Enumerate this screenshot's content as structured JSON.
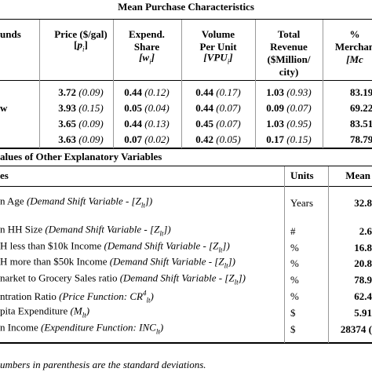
{
  "title": "Mean Purchase Characteristics",
  "top": {
    "headers": [
      [
        [
          {
            "text": "unds",
            "style": "bold"
          }
        ]
      ],
      [
        [
          {
            "text": "Price ($/gal)",
            "style": "bold"
          }
        ],
        [
          {
            "text": "[",
            "style": "bold"
          },
          {
            "text": "p",
            "style": "bolditalic"
          },
          {
            "text": "i",
            "style": "sub"
          },
          {
            "text": "]",
            "style": "bold"
          }
        ]
      ],
      [
        [
          {
            "text": "Expend.",
            "style": "bold"
          }
        ],
        [
          {
            "text": "Share",
            "style": "bold"
          }
        ],
        [
          {
            "text": "[w",
            "style": "bolditalic"
          },
          {
            "text": "i",
            "style": "sub"
          },
          {
            "text": "]",
            "style": "bolditalic"
          }
        ]
      ],
      [
        [
          {
            "text": "Volume",
            "style": "bold"
          }
        ],
        [
          {
            "text": "Per Unit",
            "style": "bold"
          }
        ],
        [
          {
            "text": "[VPU",
            "style": "bolditalic"
          },
          {
            "text": "i",
            "style": "sub"
          },
          {
            "text": "]",
            "style": "bolditalic"
          }
        ]
      ],
      [
        [
          {
            "text": "Total",
            "style": "bold"
          }
        ],
        [
          {
            "text": "Revenue",
            "style": "bold"
          }
        ],
        [
          {
            "text": "($Million/",
            "style": "bold"
          }
        ],
        [
          {
            "text": "city)",
            "style": "bold"
          }
        ]
      ],
      [
        [
          {
            "text": "%",
            "style": "bold"
          }
        ],
        [
          {
            "text": "Merchan",
            "style": "bold"
          }
        ],
        [
          {
            "text": "[Mc",
            "style": "bolditalic"
          }
        ]
      ]
    ],
    "rows": [
      {
        "label": "",
        "cells": [
          {
            "value": "3.72",
            "sd": "(0.09)"
          },
          {
            "value": "0.44",
            "sd": "(0.12)"
          },
          {
            "value": "0.44",
            "sd": "(0.17)"
          },
          {
            "value": "1.03",
            "sd": "(0.93)"
          }
        ],
        "share": "83.19"
      },
      {
        "label": "w",
        "cells": [
          {
            "value": "3.93",
            "sd": "(0.15)"
          },
          {
            "value": "0.05",
            "sd": "(0.04)"
          },
          {
            "value": "0.44",
            "sd": "(0.07)"
          },
          {
            "value": "0.09",
            "sd": "(0.07)"
          }
        ],
        "share": "69.22"
      },
      {
        "label": "",
        "cells": [
          {
            "value": "3.65",
            "sd": "(0.09)"
          },
          {
            "value": "0.44",
            "sd": "(0.13)"
          },
          {
            "value": "0.45",
            "sd": "(0.07)"
          },
          {
            "value": "1.03",
            "sd": "(0.95)"
          }
        ],
        "share": "83.51"
      },
      {
        "label": "",
        "cells": [
          {
            "value": "3.63",
            "sd": "(0.09)"
          },
          {
            "value": "0.07",
            "sd": "(0.02)"
          },
          {
            "value": "0.42",
            "sd": "(0.05)"
          },
          {
            "value": "0.17",
            "sd": "(0.15)"
          }
        ],
        "share": "78.79"
      }
    ]
  },
  "bottom": {
    "title": "alues of Other Explanatory Variables",
    "headers": [
      "es",
      "Units",
      "Mean"
    ],
    "rows": [
      {
        "label": [
          {
            "text": "n Age ",
            "style": "normal"
          },
          {
            "text": "(Demand Shift Variable - [Z",
            "style": "italic"
          },
          {
            "text": "lt",
            "style": "sub"
          },
          {
            "text": "])",
            "style": "italic"
          }
        ],
        "units": "Years",
        "mean": "32.8"
      },
      {
        "label": [
          {
            "text": "n HH Size ",
            "style": "normal"
          },
          {
            "text": "(Demand Shift Variable - [Z",
            "style": "italic"
          },
          {
            "text": "lt",
            "style": "sub"
          },
          {
            "text": "])",
            "style": "italic"
          }
        ],
        "units": "#",
        "mean": "2.6"
      },
      {
        "label": [
          {
            "text": "H less than $10k Income ",
            "style": "normal"
          },
          {
            "text": "(Demand Shift Variable - [Z",
            "style": "italic"
          },
          {
            "text": "lt",
            "style": "sub"
          },
          {
            "text": "])",
            "style": "italic"
          }
        ],
        "units": "%",
        "mean": "16.8"
      },
      {
        "label": [
          {
            "text": "H more than $50k Income ",
            "style": "normal"
          },
          {
            "text": "(Demand Shift Variable - [Z",
            "style": "italic"
          },
          {
            "text": "lt",
            "style": "sub"
          },
          {
            "text": "])",
            "style": "italic"
          }
        ],
        "units": "%",
        "mean": "20.8"
      },
      {
        "label": [
          {
            "text": "narket to Grocery Sales ratio ",
            "style": "normal"
          },
          {
            "text": "(Demand Shift Variable - [Z",
            "style": "italic"
          },
          {
            "text": "lt",
            "style": "sub"
          },
          {
            "text": "])",
            "style": "italic"
          }
        ],
        "units": "%",
        "mean": "78.9"
      },
      {
        "label": [
          {
            "text": "ntration Ratio ",
            "style": "normal"
          },
          {
            "text": "(Price Function: CR",
            "style": "italic"
          },
          {
            "text": "4",
            "style": "sup"
          },
          {
            "text": "lt",
            "style": "sub"
          },
          {
            "text": ")",
            "style": "italic"
          }
        ],
        "units": "%",
        "mean": "62.4"
      },
      {
        "label": [
          {
            "text": "pita Expenditure ",
            "style": "normal"
          },
          {
            "text": "(M",
            "style": "italic"
          },
          {
            "text": "lt",
            "style": "sub"
          },
          {
            "text": ")",
            "style": "italic"
          }
        ],
        "units": "$",
        "mean": "5.91"
      },
      {
        "label": [
          {
            "text": "n Income ",
            "style": "normal"
          },
          {
            "text": "(Expenditure Function: INC",
            "style": "italic"
          },
          {
            "text": "lt",
            "style": "sub"
          },
          {
            "text": ")",
            "style": "italic"
          }
        ],
        "units": "$",
        "mean": "28374 ("
      }
    ]
  },
  "footnote": "umbers in parenthesis are the standard deviations."
}
